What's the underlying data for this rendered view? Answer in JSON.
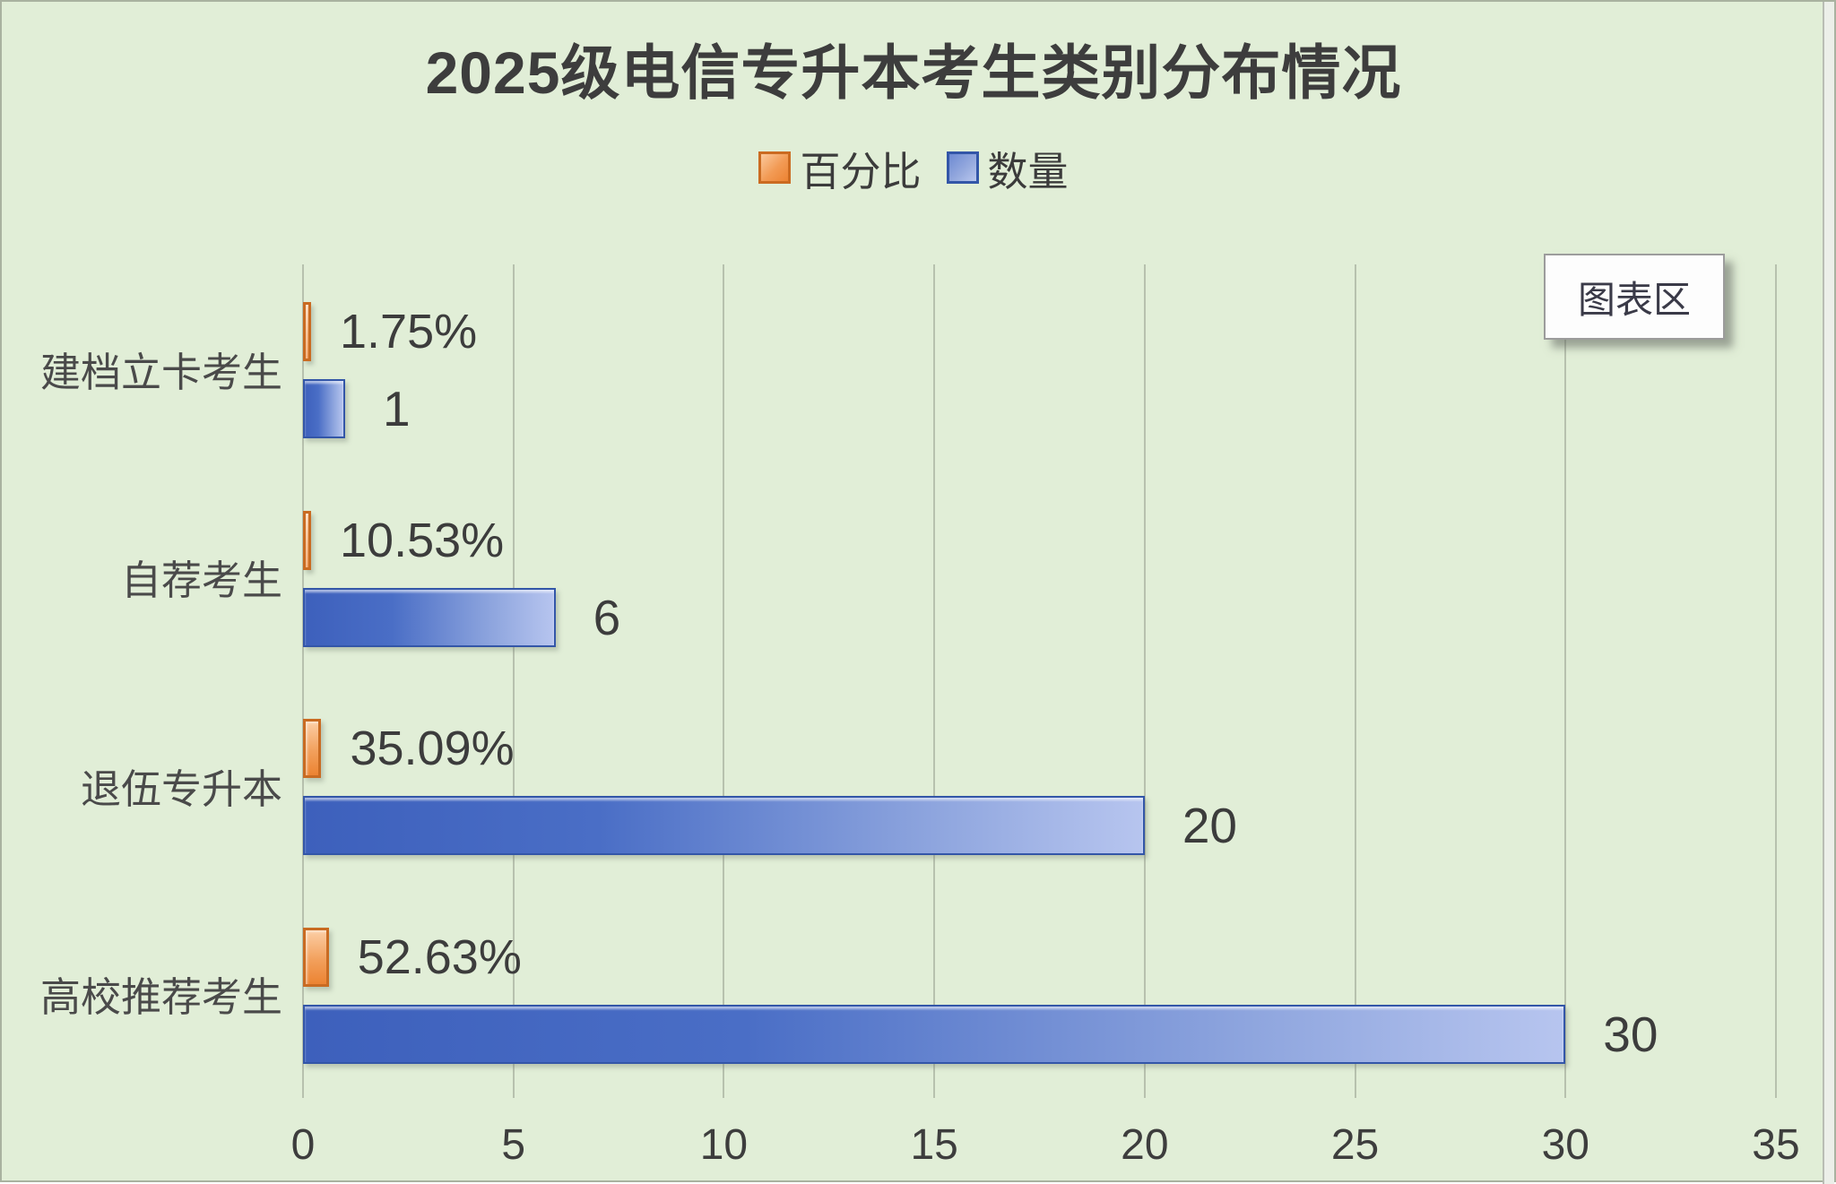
{
  "title": "2025级电信专升本考生类别分布情况",
  "tooltip_label": "图表区",
  "legend": {
    "position": "top",
    "items": [
      {
        "label": "百分比",
        "color": "#ED7D31"
      },
      {
        "label": "数量",
        "color": "#4472C4"
      }
    ]
  },
  "colors": {
    "chart_background": "#e1eed7",
    "percentage_series": "#ED7D31",
    "count_series": "#4472C4",
    "gridline": "#a8b1a0",
    "text": "#3d3d3d"
  },
  "chart_data": {
    "type": "bar",
    "orientation": "horizontal",
    "title": "2025级电信专升本考生类别分布情况",
    "categories": [
      "建档立卡考生",
      "自荐考生",
      "退伍专升本",
      "高校推荐考生"
    ],
    "series": [
      {
        "name": "百分比",
        "unit": "%",
        "values": [
          1.75,
          10.53,
          35.09,
          52.63
        ],
        "labels": [
          "1.75%",
          "10.53%",
          "35.09%",
          "52.63%"
        ],
        "color": "#ED7D31",
        "note": "percentages plotted as fractions of 1 on the shared x axis"
      },
      {
        "name": "数量",
        "values": [
          1,
          6,
          20,
          30
        ],
        "labels": [
          "1",
          "6",
          "20",
          "30"
        ],
        "color": "#4472C4"
      }
    ],
    "xlabel": "",
    "ylabel": "",
    "xlim": [
      0,
      35
    ],
    "xticks": [
      0,
      5,
      10,
      15,
      20,
      25,
      30,
      35
    ],
    "grid": true,
    "legend_position": "top"
  }
}
